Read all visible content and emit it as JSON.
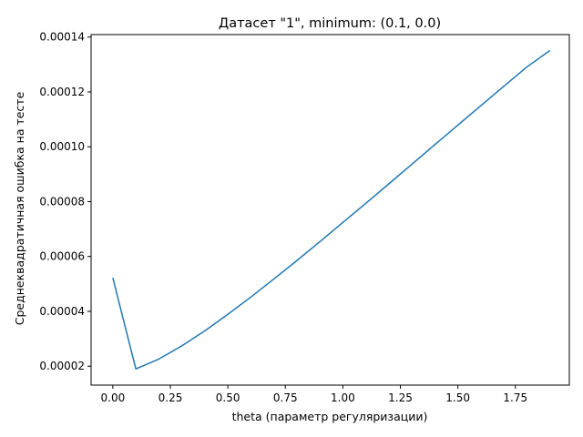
{
  "chart_data": {
    "type": "line",
    "title": "Датасет \"1\", minimum: (0.1, 0.0)",
    "xlabel": "theta (параметр регуляризации)",
    "ylabel": "Среднеквадратичная ошибка на тесте",
    "xlim": [
      -0.0945,
      1.9845
    ],
    "ylim": [
      1.31e-05,
      0.0001409
    ],
    "grid": false,
    "x_ticks": [
      0.0,
      0.25,
      0.5,
      0.75,
      1.0,
      1.25,
      1.5,
      1.75
    ],
    "x_tick_labels": [
      "0.00",
      "0.25",
      "0.50",
      "0.75",
      "1.00",
      "1.25",
      "1.50",
      "1.75"
    ],
    "y_ticks": [
      2e-05,
      4e-05,
      6e-05,
      8e-05,
      0.0001,
      0.00012,
      0.00014
    ],
    "y_tick_labels": [
      "0.00002",
      "0.00004",
      "0.00006",
      "0.00008",
      "0.00010",
      "0.00012",
      "0.00014"
    ],
    "series": [
      {
        "color": "#1f77b4",
        "x": [
          0.0,
          0.1,
          0.2,
          0.3,
          0.4,
          0.5,
          0.6,
          0.7,
          0.8,
          0.9,
          1.0,
          1.1,
          1.2,
          1.3,
          1.4,
          1.5,
          1.6,
          1.7,
          1.8,
          1.9
        ],
        "y": [
          5.22e-05,
          1.9e-05,
          2.26e-05,
          2.74e-05,
          3.29e-05,
          3.89e-05,
          4.52e-05,
          5.18e-05,
          5.85e-05,
          6.54e-05,
          7.24e-05,
          7.94e-05,
          8.65e-05,
          9.36e-05,
          0.0001008,
          0.0001079,
          0.000115,
          0.0001221,
          0.0001291,
          0.0001351
        ]
      }
    ]
  }
}
